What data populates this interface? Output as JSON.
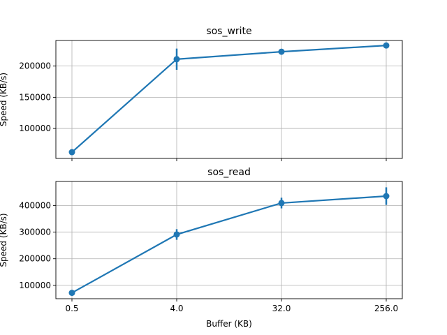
{
  "chart_data": [
    {
      "type": "line",
      "title": "sos_write",
      "xlabel": "",
      "ylabel": "Speed (KB/s)",
      "x": [
        0.5,
        4.0,
        32.0,
        256.0
      ],
      "x_tick_labels": [
        "0.5",
        "4.0",
        "32.0",
        "256.0"
      ],
      "show_x_tick_labels": false,
      "y": [
        62000,
        211000,
        223000,
        233000
      ],
      "yerr": [
        2000,
        17000,
        3500,
        3000
      ],
      "ylim": [
        52000,
        241000
      ],
      "yticks": [
        100000,
        150000,
        200000
      ],
      "ytick_labels": [
        "100000",
        "150000",
        "200000"
      ],
      "grid": true,
      "color": "#1f77b4"
    },
    {
      "type": "line",
      "title": "sos_read",
      "xlabel": "Buffer (KB)",
      "ylabel": "Speed (KB/s)",
      "x": [
        0.5,
        4.0,
        32.0,
        256.0
      ],
      "x_tick_labels": [
        "0.5",
        "4.0",
        "32.0",
        "256.0"
      ],
      "show_x_tick_labels": true,
      "y": [
        72000,
        291000,
        409000,
        435000
      ],
      "yerr": [
        4000,
        20000,
        20000,
        33000
      ],
      "ylim": [
        50000,
        490000
      ],
      "yticks": [
        100000,
        200000,
        300000,
        400000
      ],
      "ytick_labels": [
        "100000",
        "200000",
        "300000",
        "400000"
      ],
      "grid": true,
      "color": "#1f77b4"
    }
  ]
}
